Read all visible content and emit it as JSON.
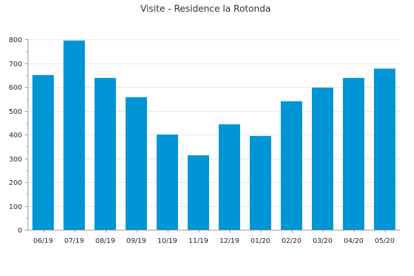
{
  "chart_data": {
    "type": "bar",
    "title": "Visite - Residence la Rotonda",
    "categories": [
      "06/19",
      "07/19",
      "08/19",
      "09/19",
      "10/19",
      "11/19",
      "12/19",
      "01/20",
      "02/20",
      "03/20",
      "04/20",
      "05/20"
    ],
    "values": [
      650,
      795,
      638,
      557,
      400,
      313,
      443,
      394,
      540,
      597,
      638,
      677
    ],
    "ylim": [
      0,
      800
    ],
    "yticks": [
      0,
      100,
      200,
      300,
      400,
      500,
      600,
      700,
      800
    ],
    "ytick_labels": [
      "0",
      "100",
      "200",
      "300",
      "400",
      "500",
      "600",
      "700",
      "800"
    ],
    "grid": true,
    "bar_color": "#0095d5",
    "grid_color": "#e6e6e6",
    "axis_color": "#999999"
  }
}
